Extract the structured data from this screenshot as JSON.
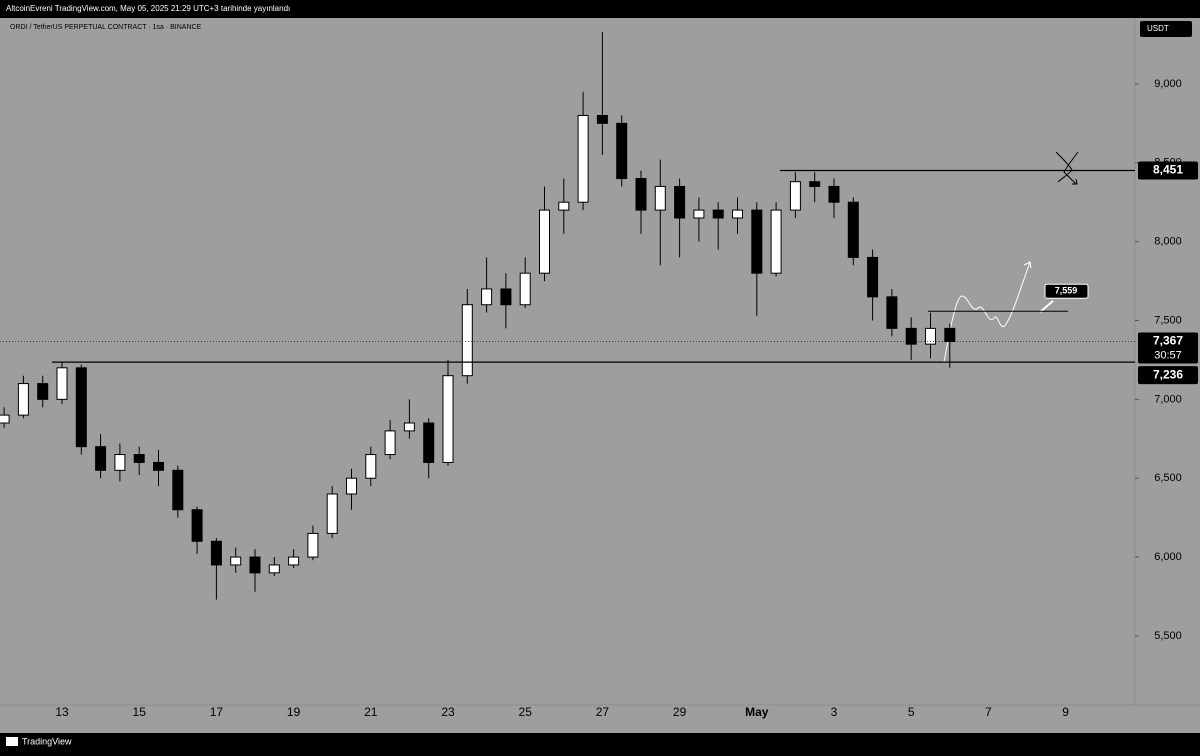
{
  "header": "AltcoinEvreni TradingView.com, May 05, 2025 21:29 UTC+3 tarihinde yayınlandı",
  "footer": "TradingView",
  "chart_data": {
    "type": "candlestick",
    "title": "ORDI / TetherUS PERPETUAL CONTRACT · 1sa · BINANCE",
    "currency": "USDT",
    "categories": [
      null,
      null,
      null,
      "13",
      null,
      null,
      null,
      "15",
      null,
      null,
      null,
      "17",
      null,
      null,
      null,
      "19",
      null,
      null,
      null,
      "21",
      null,
      null,
      null,
      "23",
      null,
      null,
      null,
      "25",
      null,
      null,
      null,
      "27",
      null,
      null,
      null,
      "29",
      null,
      null,
      null,
      "May",
      null,
      null,
      null,
      "3",
      null,
      null,
      null,
      "5",
      null,
      null,
      null,
      "7",
      null,
      null,
      null,
      "9",
      null
    ],
    "open": [
      6850,
      6900,
      7100,
      7000,
      7200,
      6700,
      6550,
      6650,
      6600,
      6550,
      6300,
      6100,
      5950,
      6000,
      5900,
      5950,
      6000,
      6150,
      6400,
      6500,
      6650,
      6800,
      6850,
      6600,
      7150,
      7600,
      7700,
      7600,
      7800,
      8200,
      8250,
      8800,
      8750,
      8400,
      8200,
      8350,
      8150,
      8200,
      8150,
      8200,
      7800,
      8200,
      8380,
      8350,
      8250,
      7900,
      7650,
      7450,
      7350,
      7450,
      null,
      null,
      null,
      null,
      null,
      null,
      null
    ],
    "high": [
      6950,
      7150,
      7150,
      7240,
      7220,
      6780,
      6720,
      6700,
      6680,
      6580,
      6320,
      6120,
      6060,
      6050,
      6000,
      6050,
      6200,
      6450,
      6560,
      6700,
      6870,
      7000,
      6880,
      7250,
      7700,
      7900,
      7800,
      7900,
      8350,
      8400,
      8950,
      9330,
      8800,
      8450,
      8520,
      8400,
      8280,
      8250,
      8280,
      8250,
      8250,
      8440,
      8440,
      8400,
      8280,
      7950,
      7700,
      7520,
      7550,
      7480,
      null,
      null,
      null,
      null,
      null,
      null,
      null
    ],
    "low": [
      6820,
      6880,
      6950,
      6970,
      6650,
      6500,
      6480,
      6520,
      6450,
      6250,
      6020,
      5730,
      5900,
      5780,
      5880,
      5930,
      5980,
      6120,
      6300,
      6450,
      6620,
      6750,
      6500,
      6580,
      7100,
      7550,
      7450,
      7580,
      7750,
      8050,
      8200,
      8550,
      8350,
      8050,
      7850,
      7900,
      8000,
      7950,
      8050,
      7530,
      7780,
      8150,
      8250,
      8150,
      7850,
      7500,
      7400,
      7250,
      7260,
      7200,
      null,
      null,
      null,
      null,
      null,
      null,
      null
    ],
    "close": [
      6900,
      7100,
      7000,
      7200,
      6700,
      6550,
      6650,
      6600,
      6550,
      6300,
      6100,
      5950,
      6000,
      5900,
      5950,
      6000,
      6150,
      6400,
      6500,
      6650,
      6800,
      6850,
      6600,
      7150,
      7600,
      7700,
      7600,
      7800,
      8200,
      8250,
      8800,
      8750,
      8400,
      8200,
      8350,
      8150,
      8200,
      8150,
      8200,
      7800,
      8200,
      8380,
      8350,
      8250,
      7900,
      7650,
      7450,
      7350,
      7450,
      7367,
      null,
      null,
      null,
      null,
      null,
      null,
      null
    ],
    "up_color": "#ffffff",
    "down_color": "#000000",
    "ylim": [
      5062,
      9418
    ],
    "yticks": [
      {
        "value": 5500,
        "label": "5,500"
      },
      {
        "value": 6000,
        "label": "6,000"
      },
      {
        "value": 6500,
        "label": "6,500"
      },
      {
        "value": 7000,
        "label": "7,000"
      },
      {
        "value": 7500,
        "label": "7,500"
      },
      {
        "value": 8000,
        "label": "8,000"
      },
      {
        "value": 8500,
        "label": "8,500"
      },
      {
        "value": 9000,
        "label": "9,000"
      }
    ],
    "grid": false,
    "resistance": {
      "value": 8451,
      "label": "8,451"
    },
    "support": {
      "value": 7236,
      "label": "7,236"
    },
    "current_price": {
      "value": 7367,
      "label": "7,367"
    },
    "countdown": "30:57",
    "target": {
      "value": 7559,
      "label": "7,559"
    }
  }
}
